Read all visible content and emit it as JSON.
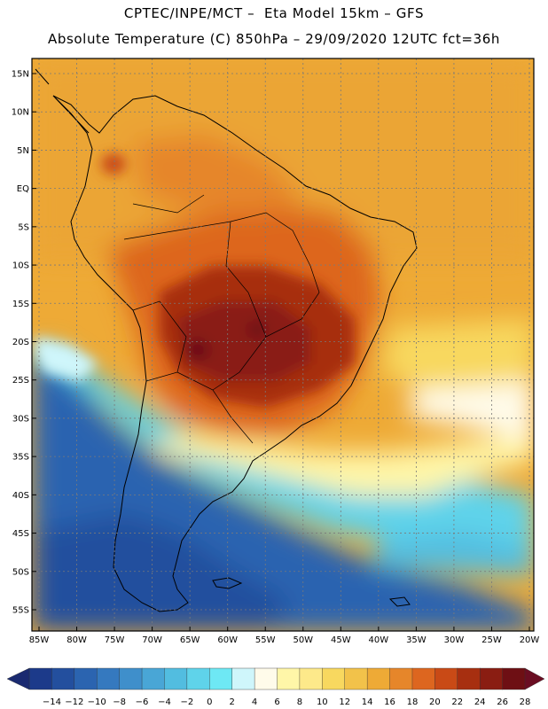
{
  "header": {
    "line1": "CPTEC/INPE/MCT –  Eta Model 15km – GFS",
    "line2": "Absolute Temperature (C) 850hPa – 29/09/2020 12UTC fct=36h"
  },
  "axes": {
    "lat_labels": [
      "15N",
      "10N",
      "5N",
      "EQ",
      "5S",
      "10S",
      "15S",
      "20S",
      "25S",
      "30S",
      "35S",
      "40S",
      "45S",
      "50S",
      "55S"
    ],
    "lon_labels": [
      "85W",
      "80W",
      "75W",
      "70W",
      "65W",
      "60W",
      "55W",
      "50W",
      "45W",
      "40W",
      "35W",
      "30W",
      "25W",
      "20W"
    ],
    "lat_values": [
      15,
      10,
      5,
      0,
      -5,
      -10,
      -15,
      -20,
      -25,
      -30,
      -35,
      -40,
      -45,
      -50,
      -55
    ],
    "lon_values": [
      -85,
      -80,
      -75,
      -70,
      -65,
      -60,
      -55,
      -50,
      -45,
      -40,
      -35,
      -30,
      -25,
      -20
    ]
  },
  "colorbar": {
    "labels": [
      "-14",
      "-12",
      "-10",
      "-8",
      "-6",
      "-4",
      "-2",
      "0",
      "2",
      "4",
      "6",
      "8",
      "10",
      "12",
      "14",
      "16",
      "18",
      "20",
      "22",
      "24",
      "26",
      "28"
    ],
    "colors": [
      "#1c3a8a",
      "#234f9e",
      "#2b64b0",
      "#3579bf",
      "#3f8fcb",
      "#49a6d6",
      "#52bde0",
      "#5fd3ea",
      "#6ee8f4",
      "#cff6fb",
      "#fffbea",
      "#fff6a8",
      "#fde98a",
      "#f8d85f",
      "#f2c24a",
      "#eeaa36",
      "#e6862a",
      "#dd661f",
      "#c94a16",
      "#a72f10",
      "#8a1d12",
      "#6e0f14"
    ],
    "low_arrow_color": "#1a2a70",
    "high_arrow_color": "#6a0d22"
  },
  "colors": {
    "land_outline": "#000000",
    "grid": "#7a7a7a"
  }
}
